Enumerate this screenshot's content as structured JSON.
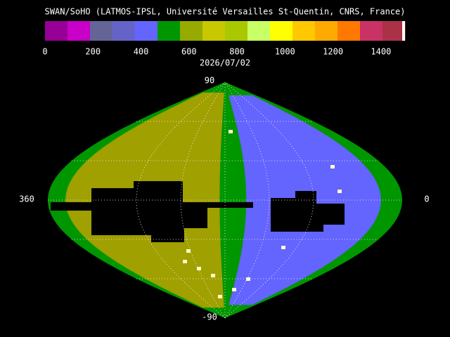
{
  "header": {
    "title": "SWAN/SoHO (LATMOS-IPSL, Université Versailles St-Quentin, CNRS, France)"
  },
  "colorbar": {
    "range": [
      0,
      1500
    ],
    "ticks": [
      0,
      200,
      400,
      600,
      800,
      1000,
      1200,
      1400
    ],
    "colors": [
      "#960096",
      "#c800c8",
      "#646496",
      "#6464c8",
      "#6464ff",
      "#009600",
      "#96aa00",
      "#c8c800",
      "#aac800",
      "#c8ff64",
      "#ffff00",
      "#ffc800",
      "#ffaa00",
      "#ff7800",
      "#c83264",
      "#aa3246"
    ]
  },
  "date": "2026/07/02",
  "map": {
    "top_label": "90",
    "bottom_label": "-90",
    "left_label": "360",
    "right_label": "0"
  }
}
